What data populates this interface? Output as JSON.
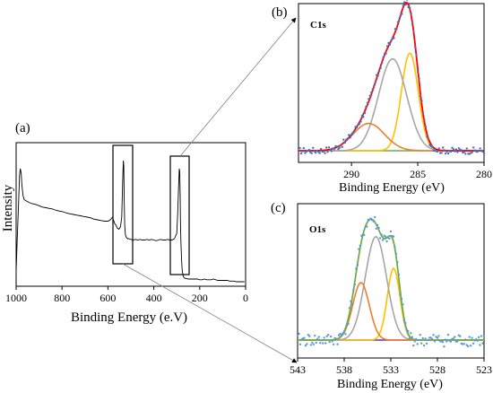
{
  "chart_data": [
    {
      "panel": "(a)",
      "type": "line",
      "xlabel": "Binding Energy (e.V)",
      "ylabel": "Intensity",
      "xlim": [
        1000,
        0
      ],
      "xticks": [
        "1000",
        "800",
        "600",
        "400",
        "200",
        "0"
      ],
      "grid": false,
      "series": [
        {
          "x": [
            1000,
            995,
            990,
            985,
            982,
            978,
            975,
            970,
            965,
            955,
            945,
            930,
            915,
            900,
            885,
            870,
            855,
            840,
            825,
            810,
            795,
            780,
            765,
            750,
            735,
            720,
            705,
            690,
            675,
            660,
            645,
            630,
            615,
            600,
            590,
            580,
            570,
            565,
            560,
            552,
            545,
            540,
            536,
            533,
            531,
            529,
            527,
            524,
            520,
            515,
            510,
            500,
            490,
            480,
            470,
            460,
            450,
            440,
            430,
            420,
            410,
            400,
            390,
            380,
            370,
            360,
            350,
            340,
            330,
            320,
            310,
            300,
            296,
            292,
            289,
            287,
            285,
            284,
            282,
            279,
            276,
            272,
            268,
            264,
            260,
            250,
            240,
            230,
            220,
            210,
            200,
            190,
            180,
            170,
            160,
            150,
            140,
            130,
            120,
            110,
            100,
            90,
            80,
            70,
            60,
            50,
            40,
            30,
            20,
            10,
            5
          ],
          "values": [
            0.1,
            0.35,
            0.58,
            0.81,
            0.86,
            0.83,
            0.74,
            0.66,
            0.63,
            0.62,
            0.61,
            0.6,
            0.595,
            0.585,
            0.575,
            0.57,
            0.565,
            0.56,
            0.55,
            0.545,
            0.54,
            0.53,
            0.525,
            0.52,
            0.515,
            0.51,
            0.505,
            0.5,
            0.495,
            0.485,
            0.48,
            0.475,
            0.47,
            0.47,
            0.48,
            0.5,
            0.45,
            0.44,
            0.42,
            0.41,
            0.43,
            0.5,
            0.75,
            0.92,
            0.88,
            0.62,
            0.44,
            0.37,
            0.35,
            0.34,
            0.34,
            0.335,
            0.33,
            0.335,
            0.33,
            0.335,
            0.33,
            0.33,
            0.335,
            0.33,
            0.335,
            0.33,
            0.325,
            0.33,
            0.335,
            0.33,
            0.33,
            0.335,
            0.33,
            0.33,
            0.34,
            0.38,
            0.52,
            0.72,
            0.86,
            0.84,
            0.66,
            0.48,
            0.32,
            0.18,
            0.1,
            0.06,
            0.05,
            0.045,
            0.045,
            0.04,
            0.04,
            0.04,
            0.04,
            0.04,
            0.035,
            0.035,
            0.04,
            0.035,
            0.035,
            0.035,
            0.04,
            0.035,
            0.03,
            0.03,
            0.03,
            0.03,
            0.03,
            0.025,
            0.025,
            0.025,
            0.02,
            0.02,
            0.02,
            0.02,
            0.02
          ]
        }
      ]
    },
    {
      "panel": "(b)",
      "title": "C1s",
      "type": "line",
      "xlabel": "Binding Energy (eV)",
      "xlim": [
        294,
        280
      ],
      "xticks": [
        "290",
        "285",
        "280"
      ],
      "grid": false,
      "peaks": [
        {
          "color": "#ffc000",
          "center": 285.6,
          "height": 0.68,
          "fwhm": 1.5
        },
        {
          "color": "#a6a6a6",
          "center": 286.9,
          "height": 0.64,
          "fwhm": 2.5
        },
        {
          "color": "#ed7d31",
          "center": 288.7,
          "height": 0.19,
          "fwhm": 2.8
        }
      ],
      "envelope_color": "#ff0000",
      "baseline_color": "#70ad47",
      "data_color": "#4472c4"
    },
    {
      "panel": "(c)",
      "title": "O1s",
      "type": "line",
      "xlabel": "Binding Energy (eV)",
      "xlim": [
        543,
        523
      ],
      "xticks": [
        "543",
        "538",
        "533",
        "528",
        "523"
      ],
      "grid": false,
      "peaks": [
        {
          "color": "#ffc000",
          "center": 532.7,
          "height": 0.5,
          "fwhm": 1.6
        },
        {
          "color": "#a6a6a6",
          "center": 534.6,
          "height": 0.72,
          "fwhm": 2.7
        },
        {
          "color": "#ed7d31",
          "center": 536.2,
          "height": 0.4,
          "fwhm": 2.1
        }
      ],
      "envelope_color": "#70ad47",
      "baseline_color": "#7030a0",
      "data_color": "#5b9bd5"
    }
  ]
}
